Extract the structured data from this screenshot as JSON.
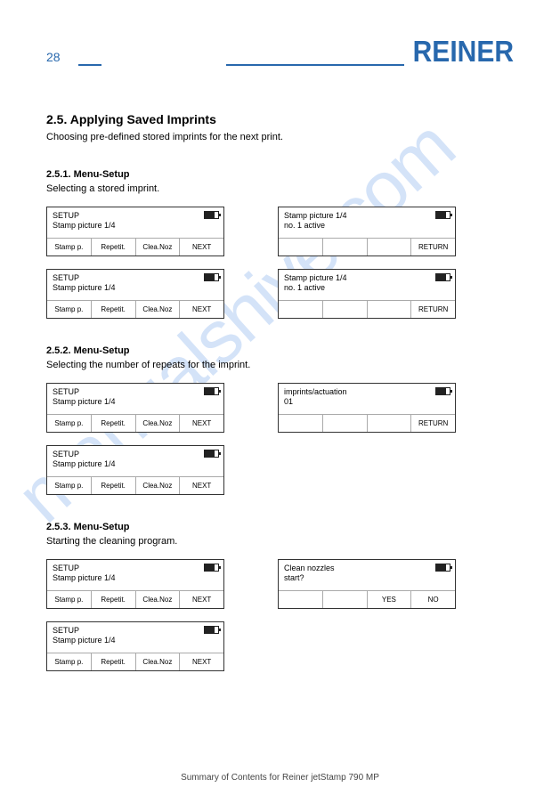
{
  "header": {
    "page_number": "28",
    "logo_text": "REINER",
    "logo_color": "#2868ad"
  },
  "section": {
    "title": "2.5. Applying Saved Imprints",
    "description": "Choosing pre-defined stored imprints for the next print."
  },
  "blocks": [
    {
      "title": "2.5.1. Menu-Setup",
      "description": "Selecting a stored imprint.",
      "rows": [
        [
          {
            "lines": [
              "SETUP",
              "Stamp picture 1/4"
            ],
            "cells": [
              "Stamp p.",
              "Repetit.",
              "Clea.Noz",
              "NEXT"
            ],
            "bat": 0.7
          },
          {
            "lines": [
              "Stamp picture 1/4",
              "no. 1 active"
            ],
            "cells": [
              "",
              "",
              "",
              "RETURN"
            ],
            "bat": 0.7
          }
        ],
        [
          {
            "lines": [
              "SETUP",
              "Stamp picture 1/4"
            ],
            "cells": [
              "Stamp p.",
              "Repetit.",
              "Clea.Noz",
              "NEXT"
            ],
            "bat": 0.7
          },
          {
            "lines": [
              "Stamp picture 1/4",
              "no. 1 active"
            ],
            "cells": [
              "",
              "",
              "",
              "RETURN"
            ],
            "bat": 0.7
          }
        ]
      ]
    },
    {
      "title": "2.5.2. Menu-Setup",
      "description": "Selecting the number of repeats for the imprint.",
      "rows": [
        [
          {
            "lines": [
              "SETUP",
              "Stamp picture 1/4"
            ],
            "cells": [
              "Stamp p.",
              "Repetit.",
              "Clea.Noz",
              "NEXT"
            ],
            "bat": 0.7
          },
          {
            "lines": [
              "imprints/actuation",
              "01"
            ],
            "cells": [
              "",
              "",
              "",
              "RETURN"
            ],
            "bat": 0.7
          }
        ],
        [
          {
            "lines": [
              "SETUP",
              "Stamp picture 1/4"
            ],
            "cells": [
              "Stamp p.",
              "Repetit.",
              "Clea.Noz",
              "NEXT"
            ],
            "bat": 0.7
          }
        ]
      ]
    },
    {
      "title": "2.5.3. Menu-Setup",
      "description": "Starting the cleaning program.",
      "rows": [
        [
          {
            "lines": [
              "SETUP",
              "Stamp picture 1/4"
            ],
            "cells": [
              "Stamp p.",
              "Repetit.",
              "Clea.Noz",
              "NEXT"
            ],
            "bat": 0.7
          },
          {
            "lines": [
              "Clean nozzles",
              "start?"
            ],
            "cells": [
              "",
              "",
              "YES",
              "NO"
            ],
            "bat": 0.7
          }
        ],
        [
          {
            "lines": [
              "SETUP",
              "Stamp picture 1/4"
            ],
            "cells": [
              "Stamp p.",
              "Repetit.",
              "Clea.Noz",
              "NEXT"
            ],
            "bat": 0.7
          }
        ]
      ]
    }
  ],
  "watermark": {
    "text": "manualshive.com",
    "color": "rgba(102,153,230,0.28)"
  },
  "footer": {
    "text": "Summary of Contents for Reiner jetStamp 790 MP"
  }
}
